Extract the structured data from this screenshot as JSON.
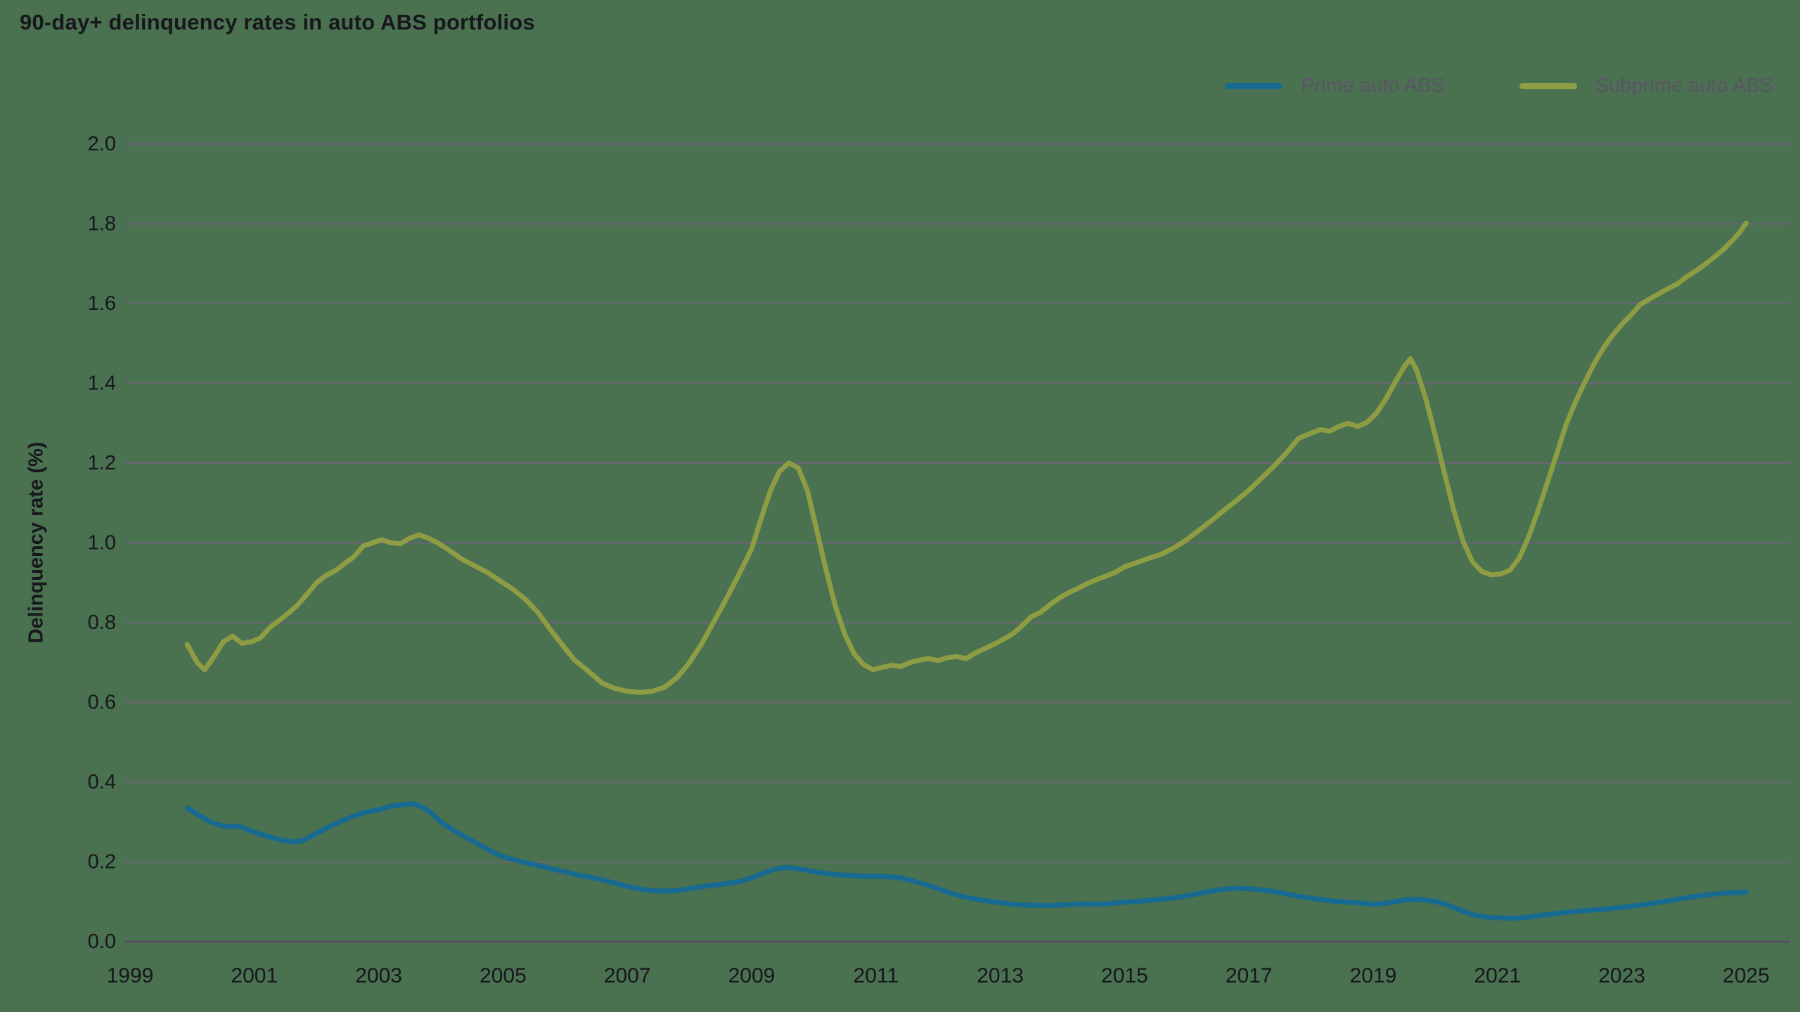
{
  "title": "90-day+ delinquency rates in auto ABS portfolios",
  "colors": {
    "background": "#4A7150",
    "grid": "#6B6477",
    "axis_zero": "#55505F",
    "text": "#17171D",
    "legend_text": "#5A5566",
    "prime": "#176A92",
    "subprime": "#8E9D43"
  },
  "legend": [
    {
      "label": "Prime auto ABS",
      "color": "#176A92"
    },
    {
      "label": "Subprime auto ABS",
      "color": "#8E9D43"
    }
  ],
  "y_axis": {
    "label": "Delinquency rate (%)",
    "min": 0.0,
    "max": 2.0,
    "tick_step": 0.2,
    "tick_labels": [
      "0.0",
      "0.2",
      "0.4",
      "0.6",
      "0.8",
      "1.0",
      "1.2",
      "1.4",
      "1.6",
      "1.8",
      "2.0"
    ]
  },
  "x_axis": {
    "tick_years": [
      1999,
      2001,
      2003,
      2005,
      2007,
      2009,
      2011,
      2013,
      2015,
      2017,
      2019,
      2021,
      2023,
      2025
    ]
  },
  "chart_data": {
    "type": "line",
    "title": "90-day+ delinquency rates in auto ABS portfolios",
    "xlabel": "",
    "ylabel": "Delinquency rate (%)",
    "xlim": [
      1998.95,
      2025.75
    ],
    "ylim": [
      0.0,
      2.0
    ],
    "grid": "horizontal",
    "legend_position": "top-right",
    "series": [
      {
        "name": "Prime auto ABS",
        "color": "#176A92",
        "points": [
          [
            1999.92,
            0.335
          ],
          [
            2000.1,
            0.318
          ],
          [
            2000.3,
            0.3
          ],
          [
            2000.45,
            0.292
          ],
          [
            2000.6,
            0.288
          ],
          [
            2000.75,
            0.29
          ],
          [
            2000.9,
            0.28
          ],
          [
            2001.05,
            0.272
          ],
          [
            2001.2,
            0.265
          ],
          [
            2001.35,
            0.258
          ],
          [
            2001.5,
            0.253
          ],
          [
            2001.65,
            0.25
          ],
          [
            2001.8,
            0.255
          ],
          [
            2002.0,
            0.272
          ],
          [
            2002.2,
            0.288
          ],
          [
            2002.4,
            0.302
          ],
          [
            2002.6,
            0.315
          ],
          [
            2002.8,
            0.325
          ],
          [
            2003.0,
            0.331
          ],
          [
            2003.2,
            0.34
          ],
          [
            2003.4,
            0.344
          ],
          [
            2003.55,
            0.346
          ],
          [
            2003.7,
            0.338
          ],
          [
            2003.85,
            0.322
          ],
          [
            2004.0,
            0.3
          ],
          [
            2004.2,
            0.28
          ],
          [
            2004.4,
            0.262
          ],
          [
            2004.6,
            0.245
          ],
          [
            2004.8,
            0.228
          ],
          [
            2005.0,
            0.213
          ],
          [
            2005.2,
            0.205
          ],
          [
            2005.4,
            0.197
          ],
          [
            2005.6,
            0.19
          ],
          [
            2005.8,
            0.182
          ],
          [
            2006.0,
            0.175
          ],
          [
            2006.2,
            0.167
          ],
          [
            2006.4,
            0.162
          ],
          [
            2006.6,
            0.155
          ],
          [
            2006.8,
            0.147
          ],
          [
            2007.0,
            0.139
          ],
          [
            2007.2,
            0.132
          ],
          [
            2007.4,
            0.128
          ],
          [
            2007.6,
            0.127
          ],
          [
            2007.8,
            0.128
          ],
          [
            2008.0,
            0.133
          ],
          [
            2008.2,
            0.138
          ],
          [
            2008.4,
            0.142
          ],
          [
            2008.6,
            0.146
          ],
          [
            2008.8,
            0.151
          ],
          [
            2009.0,
            0.16
          ],
          [
            2009.2,
            0.173
          ],
          [
            2009.4,
            0.183
          ],
          [
            2009.55,
            0.186
          ],
          [
            2009.7,
            0.184
          ],
          [
            2009.85,
            0.18
          ],
          [
            2010.0,
            0.176
          ],
          [
            2010.2,
            0.171
          ],
          [
            2010.4,
            0.168
          ],
          [
            2010.6,
            0.166
          ],
          [
            2010.8,
            0.164
          ],
          [
            2011.0,
            0.164
          ],
          [
            2011.2,
            0.163
          ],
          [
            2011.4,
            0.16
          ],
          [
            2011.6,
            0.152
          ],
          [
            2011.8,
            0.143
          ],
          [
            2012.0,
            0.133
          ],
          [
            2012.2,
            0.122
          ],
          [
            2012.4,
            0.113
          ],
          [
            2012.6,
            0.107
          ],
          [
            2012.8,
            0.102
          ],
          [
            2013.0,
            0.098
          ],
          [
            2013.2,
            0.094
          ],
          [
            2013.4,
            0.092
          ],
          [
            2013.6,
            0.091
          ],
          [
            2013.8,
            0.091
          ],
          [
            2014.0,
            0.092
          ],
          [
            2014.2,
            0.094
          ],
          [
            2014.4,
            0.095
          ],
          [
            2014.6,
            0.094
          ],
          [
            2014.8,
            0.096
          ],
          [
            2015.0,
            0.099
          ],
          [
            2015.2,
            0.101
          ],
          [
            2015.4,
            0.104
          ],
          [
            2015.6,
            0.107
          ],
          [
            2015.8,
            0.11
          ],
          [
            2016.0,
            0.115
          ],
          [
            2016.2,
            0.121
          ],
          [
            2016.4,
            0.127
          ],
          [
            2016.6,
            0.132
          ],
          [
            2016.8,
            0.134
          ],
          [
            2017.0,
            0.133
          ],
          [
            2017.2,
            0.13
          ],
          [
            2017.4,
            0.126
          ],
          [
            2017.6,
            0.12
          ],
          [
            2017.8,
            0.114
          ],
          [
            2018.0,
            0.109
          ],
          [
            2018.2,
            0.105
          ],
          [
            2018.4,
            0.101
          ],
          [
            2018.6,
            0.099
          ],
          [
            2018.8,
            0.097
          ],
          [
            2019.0,
            0.094
          ],
          [
            2019.2,
            0.096
          ],
          [
            2019.4,
            0.102
          ],
          [
            2019.6,
            0.106
          ],
          [
            2019.8,
            0.105
          ],
          [
            2020.0,
            0.101
          ],
          [
            2020.2,
            0.092
          ],
          [
            2020.4,
            0.079
          ],
          [
            2020.6,
            0.068
          ],
          [
            2020.8,
            0.062
          ],
          [
            2021.0,
            0.06
          ],
          [
            2021.2,
            0.059
          ],
          [
            2021.4,
            0.06
          ],
          [
            2021.6,
            0.064
          ],
          [
            2021.8,
            0.068
          ],
          [
            2022.0,
            0.072
          ],
          [
            2022.2,
            0.075
          ],
          [
            2022.4,
            0.078
          ],
          [
            2022.6,
            0.08
          ],
          [
            2022.8,
            0.083
          ],
          [
            2023.0,
            0.086
          ],
          [
            2023.2,
            0.09
          ],
          [
            2023.4,
            0.094
          ],
          [
            2023.6,
            0.099
          ],
          [
            2023.8,
            0.104
          ],
          [
            2024.0,
            0.109
          ],
          [
            2024.2,
            0.114
          ],
          [
            2024.4,
            0.118
          ],
          [
            2024.6,
            0.121
          ],
          [
            2024.8,
            0.123
          ],
          [
            2025.0,
            0.124
          ]
        ]
      },
      {
        "name": "Subprime auto ABS",
        "color": "#8E9D43",
        "points": [
          [
            1999.92,
            0.745
          ],
          [
            2000.08,
            0.7
          ],
          [
            2000.2,
            0.682
          ],
          [
            2000.35,
            0.715
          ],
          [
            2000.5,
            0.752
          ],
          [
            2000.65,
            0.766
          ],
          [
            2000.8,
            0.748
          ],
          [
            2000.95,
            0.752
          ],
          [
            2001.1,
            0.762
          ],
          [
            2001.25,
            0.788
          ],
          [
            2001.4,
            0.806
          ],
          [
            2001.55,
            0.824
          ],
          [
            2001.7,
            0.845
          ],
          [
            2001.85,
            0.872
          ],
          [
            2002.0,
            0.9
          ],
          [
            2002.15,
            0.918
          ],
          [
            2002.3,
            0.93
          ],
          [
            2002.45,
            0.948
          ],
          [
            2002.6,
            0.965
          ],
          [
            2002.75,
            0.992
          ],
          [
            2002.9,
            1.0
          ],
          [
            2003.05,
            1.008
          ],
          [
            2003.2,
            1.0
          ],
          [
            2003.35,
            0.998
          ],
          [
            2003.5,
            1.012
          ],
          [
            2003.65,
            1.02
          ],
          [
            2003.8,
            1.012
          ],
          [
            2003.95,
            1.0
          ],
          [
            2004.15,
            0.98
          ],
          [
            2004.35,
            0.958
          ],
          [
            2004.55,
            0.942
          ],
          [
            2004.75,
            0.926
          ],
          [
            2004.95,
            0.905
          ],
          [
            2005.15,
            0.885
          ],
          [
            2005.35,
            0.86
          ],
          [
            2005.55,
            0.828
          ],
          [
            2005.75,
            0.785
          ],
          [
            2005.95,
            0.745
          ],
          [
            2006.15,
            0.706
          ],
          [
            2006.3,
            0.688
          ],
          [
            2006.45,
            0.668
          ],
          [
            2006.6,
            0.648
          ],
          [
            2006.8,
            0.635
          ],
          [
            2007.0,
            0.628
          ],
          [
            2007.2,
            0.625
          ],
          [
            2007.4,
            0.628
          ],
          [
            2007.6,
            0.638
          ],
          [
            2007.8,
            0.662
          ],
          [
            2008.0,
            0.7
          ],
          [
            2008.2,
            0.748
          ],
          [
            2008.4,
            0.805
          ],
          [
            2008.6,
            0.862
          ],
          [
            2008.8,
            0.922
          ],
          [
            2009.0,
            0.985
          ],
          [
            2009.15,
            1.06
          ],
          [
            2009.3,
            1.13
          ],
          [
            2009.45,
            1.18
          ],
          [
            2009.6,
            1.2
          ],
          [
            2009.75,
            1.188
          ],
          [
            2009.9,
            1.13
          ],
          [
            2010.05,
            1.03
          ],
          [
            2010.2,
            0.93
          ],
          [
            2010.35,
            0.84
          ],
          [
            2010.5,
            0.77
          ],
          [
            2010.65,
            0.722
          ],
          [
            2010.8,
            0.695
          ],
          [
            2010.95,
            0.682
          ],
          [
            2011.1,
            0.688
          ],
          [
            2011.25,
            0.693
          ],
          [
            2011.4,
            0.69
          ],
          [
            2011.55,
            0.7
          ],
          [
            2011.7,
            0.706
          ],
          [
            2011.85,
            0.71
          ],
          [
            2012.0,
            0.705
          ],
          [
            2012.15,
            0.712
          ],
          [
            2012.3,
            0.715
          ],
          [
            2012.45,
            0.71
          ],
          [
            2012.6,
            0.724
          ],
          [
            2012.75,
            0.735
          ],
          [
            2012.9,
            0.746
          ],
          [
            2013.05,
            0.758
          ],
          [
            2013.2,
            0.772
          ],
          [
            2013.35,
            0.792
          ],
          [
            2013.5,
            0.815
          ],
          [
            2013.65,
            0.826
          ],
          [
            2013.8,
            0.845
          ],
          [
            2013.95,
            0.862
          ],
          [
            2014.1,
            0.875
          ],
          [
            2014.25,
            0.886
          ],
          [
            2014.4,
            0.898
          ],
          [
            2014.55,
            0.908
          ],
          [
            2014.7,
            0.917
          ],
          [
            2014.85,
            0.926
          ],
          [
            2015.0,
            0.94
          ],
          [
            2015.2,
            0.951
          ],
          [
            2015.4,
            0.962
          ],
          [
            2015.6,
            0.972
          ],
          [
            2015.8,
            0.988
          ],
          [
            2016.0,
            1.008
          ],
          [
            2016.2,
            1.032
          ],
          [
            2016.4,
            1.056
          ],
          [
            2016.6,
            1.082
          ],
          [
            2016.8,
            1.106
          ],
          [
            2017.0,
            1.132
          ],
          [
            2017.2,
            1.162
          ],
          [
            2017.4,
            1.192
          ],
          [
            2017.6,
            1.225
          ],
          [
            2017.8,
            1.262
          ],
          [
            2018.0,
            1.275
          ],
          [
            2018.15,
            1.284
          ],
          [
            2018.3,
            1.28
          ],
          [
            2018.45,
            1.292
          ],
          [
            2018.6,
            1.3
          ],
          [
            2018.75,
            1.292
          ],
          [
            2018.9,
            1.302
          ],
          [
            2019.05,
            1.325
          ],
          [
            2019.2,
            1.36
          ],
          [
            2019.35,
            1.402
          ],
          [
            2019.5,
            1.442
          ],
          [
            2019.6,
            1.462
          ],
          [
            2019.7,
            1.432
          ],
          [
            2019.85,
            1.36
          ],
          [
            2020.0,
            1.268
          ],
          [
            2020.15,
            1.172
          ],
          [
            2020.3,
            1.08
          ],
          [
            2020.45,
            1.002
          ],
          [
            2020.6,
            0.952
          ],
          [
            2020.75,
            0.928
          ],
          [
            2020.9,
            0.92
          ],
          [
            2021.05,
            0.922
          ],
          [
            2021.2,
            0.932
          ],
          [
            2021.35,
            0.962
          ],
          [
            2021.5,
            1.015
          ],
          [
            2021.65,
            1.08
          ],
          [
            2021.8,
            1.15
          ],
          [
            2021.95,
            1.222
          ],
          [
            2022.1,
            1.295
          ],
          [
            2022.25,
            1.352
          ],
          [
            2022.4,
            1.402
          ],
          [
            2022.55,
            1.448
          ],
          [
            2022.7,
            1.488
          ],
          [
            2022.85,
            1.52
          ],
          [
            2023.0,
            1.548
          ],
          [
            2023.15,
            1.572
          ],
          [
            2023.3,
            1.598
          ],
          [
            2023.45,
            1.612
          ],
          [
            2023.6,
            1.625
          ],
          [
            2023.75,
            1.638
          ],
          [
            2023.9,
            1.65
          ],
          [
            2024.05,
            1.668
          ],
          [
            2024.2,
            1.683
          ],
          [
            2024.35,
            1.7
          ],
          [
            2024.5,
            1.718
          ],
          [
            2024.65,
            1.738
          ],
          [
            2024.8,
            1.762
          ],
          [
            2024.9,
            1.78
          ],
          [
            2025.0,
            1.802
          ]
        ]
      }
    ]
  }
}
